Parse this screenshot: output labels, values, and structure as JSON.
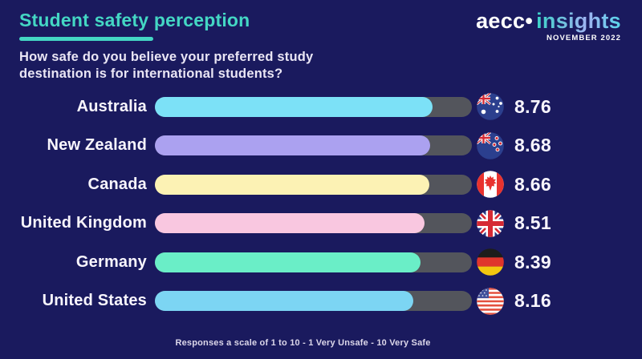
{
  "page": {
    "background_color": "#1a1a5e",
    "accent_color": "#44d7c4"
  },
  "header": {
    "title": "Student safety perception",
    "subtitle": "How safe do you believe your preferred study destination is for international students?"
  },
  "logo": {
    "brand": "aecc",
    "dot": "•",
    "product": "insights",
    "date": "NOVEMBER 2022"
  },
  "chart_data": {
    "type": "bar",
    "orientation": "horizontal",
    "value_scale": [
      0,
      10
    ],
    "track_color": "#53555c",
    "title": "How safe do you believe your preferred study destination is for international students?",
    "categories": [
      "Australia",
      "New Zealand",
      "Canada",
      "United Kingdom",
      "Germany",
      "United States"
    ],
    "values": [
      8.76,
      8.68,
      8.66,
      8.51,
      8.39,
      8.16
    ],
    "rows": [
      {
        "label": "Australia",
        "value": 8.76,
        "bar_color": "#7ce1f7",
        "flag": "australia-flag-icon"
      },
      {
        "label": "New Zealand",
        "value": 8.68,
        "bar_color": "#aba1f0",
        "flag": "new-zealand-flag-icon"
      },
      {
        "label": "Canada",
        "value": 8.66,
        "bar_color": "#fcf2b4",
        "flag": "canada-flag-icon"
      },
      {
        "label": "United Kingdom",
        "value": 8.51,
        "bar_color": "#f9c7e0",
        "flag": "united-kingdom-flag-icon"
      },
      {
        "label": "Germany",
        "value": 8.39,
        "bar_color": "#6aeec7",
        "flag": "germany-flag-icon"
      },
      {
        "label": "United States",
        "value": 8.16,
        "bar_color": "#7cd5f3",
        "flag": "united-states-flag-icon"
      }
    ]
  },
  "footer": {
    "note": "Responses a scale of 1 to 10 - 1 Very Unsafe - 10 Very Safe"
  }
}
